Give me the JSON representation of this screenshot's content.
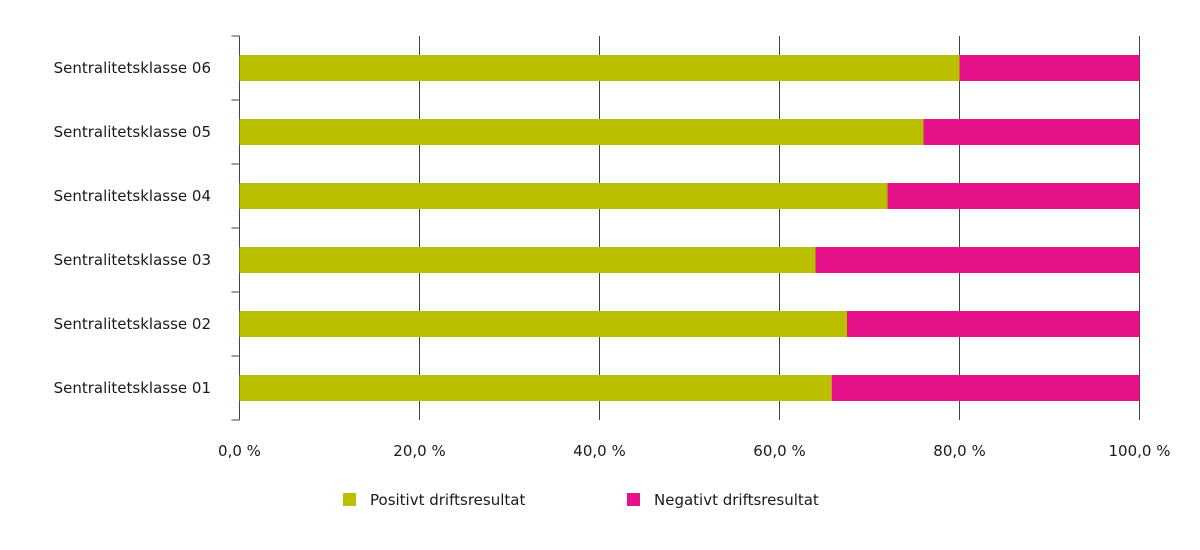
{
  "chart_data": {
    "type": "bar",
    "orientation": "horizontal",
    "stacked": true,
    "categories": [
      "Sentralitetsklasse 06",
      "Sentralitetsklasse 05",
      "Sentralitetsklasse 04",
      "Sentralitetsklasse 03",
      "Sentralitetsklasse 02",
      "Sentralitetsklasse 01"
    ],
    "series": [
      {
        "name": "Positivt driftsresultat",
        "color": "#bac000",
        "values": [
          80.0,
          76.0,
          72.0,
          64.0,
          67.5,
          65.8
        ]
      },
      {
        "name": "Negativt driftsresultat",
        "color": "#e5128a",
        "values": [
          20.0,
          24.0,
          28.0,
          36.0,
          32.5,
          34.2
        ]
      }
    ],
    "xlim": [
      0,
      100
    ],
    "xticks": [
      "0,0 %",
      "20,0 %",
      "40,0 %",
      "60,0 %",
      "80,0 %",
      "100,0 %"
    ],
    "grid": true,
    "legend": "bottom"
  }
}
